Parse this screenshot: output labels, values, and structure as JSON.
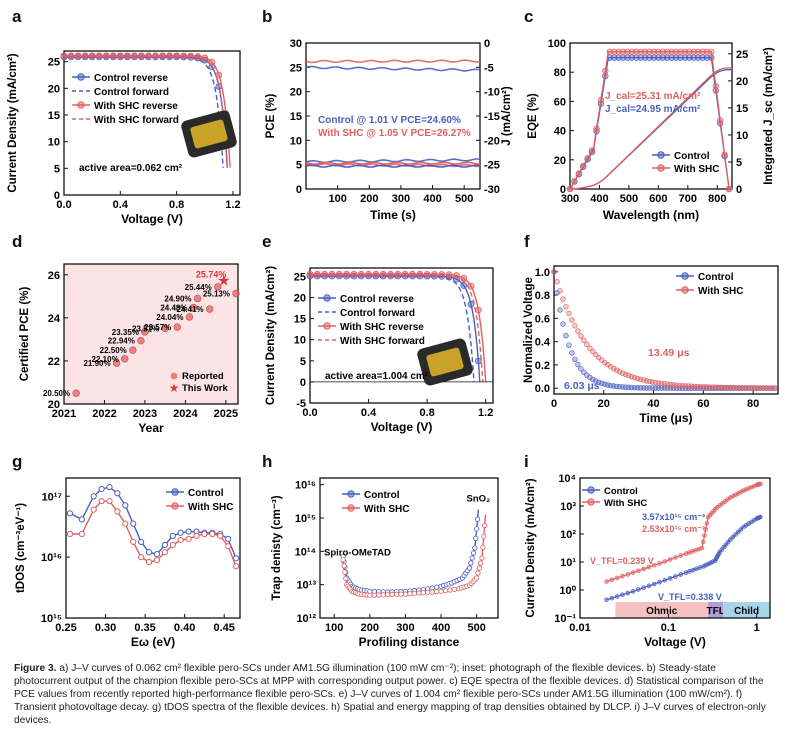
{
  "figure": {
    "caption_label": "Figure 3.",
    "caption_text": "a) J–V curves of 0.062 cm² flexible pero-SCs under AM1.5G illumination (100 mW cm⁻²); inset: photograph of the flexible devices. b) Steady-state photocurrent output of the champion flexible pero-SCs at MPP with corresponding output power. c) EQE spectra of the flexible devices. d) Statistical comparison of the PCE values from recently reported high-performance flexible pero-SCs. e) J–V curves of 1.004 cm² flexible pero-SCs under AM1.5G illumination (100 mW/cm²). f) Transient photovoltage decay. g) tDOS spectra of the flexible devices. h) Spatial and energy mapping of trap densities obtained by DLCP. i) J–V curves of electron-only devices."
  },
  "colors": {
    "control": "#4a5fc1",
    "shc": "#e06060",
    "star": "#d93a3a",
    "ohmic": "#f4c2c2",
    "tfl": "#b39ddb",
    "child": "#a8d4e8"
  },
  "panels": {
    "a": {
      "label": "a",
      "xlabel": "Voltage (V)",
      "ylabel": "Current Density (mA/cm²)",
      "legend": [
        "Control reverse",
        "Control forward",
        "With SHC reverse",
        "With SHC forward"
      ],
      "note": "active area=0.062 cm²"
    },
    "b": {
      "label": "b",
      "xlabel": "Time (s)",
      "ylabel": "PCE (%)",
      "y2label": "J (mA/cm²)",
      "text_control": "Control @ 1.01 V  PCE=24.60%",
      "text_shc": "With SHC @ 1.05 V  PCE=26.27%"
    },
    "c": {
      "label": "c",
      "xlabel": "Wavelength (nm)",
      "ylabel": "EQE (%)",
      "y2label": "Integrated J_sc (mA/cm²)",
      "jcal_shc": "J_cal=25.31 mA/cm²",
      "jcal_control": "J_cal=24.95 mA/cm²",
      "legend": [
        "Control",
        "With SHC"
      ]
    },
    "d": {
      "label": "d",
      "xlabel": "Year",
      "ylabel": "Certified PCE (%)",
      "legend": [
        "Reported",
        "This Work"
      ]
    },
    "e": {
      "label": "e",
      "xlabel": "Voltage (V)",
      "ylabel": "Current Density (mA/cm²)",
      "legend": [
        "Control reverse",
        "Control forward",
        "With SHC reverse",
        "With SHC forward"
      ],
      "note": "active area=1.004 cm²"
    },
    "f": {
      "label": "f",
      "xlabel": "Time (μs)",
      "ylabel": "Normalized Voltage",
      "legend": [
        "Control",
        "With SHC"
      ],
      "tau_control": "6.03 μs",
      "tau_shc": "13.49 μs"
    },
    "g": {
      "label": "g",
      "xlabel": "Eω (eV)",
      "ylabel": "tDOS (cm⁻³eV⁻¹)",
      "legend": [
        "Control",
        "With SHC"
      ]
    },
    "h": {
      "label": "h",
      "xlabel": "Profiling distance",
      "ylabel": "Trap denisty (cm⁻³)",
      "legend": [
        "Control",
        "With SHC"
      ],
      "left_label": "Spiro-OMeTAD",
      "right_label": "SnO₂"
    },
    "i": {
      "label": "i",
      "xlabel": "Voltage (V)",
      "ylabel": "Current Density (mA/cm²)",
      "legend": [
        "Control",
        "With SHC"
      ],
      "n_control": "3.57x10¹⁵ cm⁻³",
      "n_shc": "2.53x10¹⁵ cm⁻³",
      "vtfl_shc": "V_TFL=0.239 V",
      "vtfl_control": "V_TFL=0.338 V",
      "regions": [
        "Ohmic",
        "TFL",
        "Child"
      ]
    }
  },
  "chart_data": [
    {
      "panel": "a",
      "type": "line",
      "xlim": [
        0,
        1.25
      ],
      "ylim": [
        0,
        27
      ],
      "xticks": [
        "0.0",
        "0.4",
        "0.8",
        "1.2"
      ],
      "yticks": [
        "0",
        "5",
        "10",
        "15",
        "20",
        "25"
      ],
      "series": [
        {
          "name": "Control reverse",
          "jsc": 25.9,
          "voc": 1.17
        },
        {
          "name": "Control forward",
          "jsc": 25.8,
          "voc": 1.14
        },
        {
          "name": "With SHC reverse",
          "jsc": 26.1,
          "voc": 1.19
        },
        {
          "name": "With SHC forward",
          "jsc": 26.0,
          "voc": 1.17
        }
      ]
    },
    {
      "panel": "b",
      "type": "line",
      "xlim": [
        0,
        550
      ],
      "ylim": [
        0,
        30
      ],
      "y2lim": [
        -30,
        0
      ],
      "xticks": [
        "100",
        "200",
        "300",
        "400",
        "500"
      ],
      "yticks": [
        "0",
        "5",
        "10",
        "15",
        "20",
        "25",
        "30"
      ],
      "y2ticks": [
        "0",
        "-5",
        "-10",
        "-15",
        "-20",
        "-25",
        "-30"
      ],
      "series": [
        {
          "name": "Control PCE",
          "values": [
            25.0,
            24.4
          ]
        },
        {
          "name": "With SHC PCE",
          "values": [
            26.2,
            26.3
          ]
        },
        {
          "name": "Control J",
          "values": [
            -24.4,
            -24.0
          ]
        },
        {
          "name": "With SHC J",
          "values": [
            -25.0,
            -25.2
          ]
        }
      ]
    },
    {
      "panel": "c",
      "type": "line",
      "xlim": [
        300,
        850
      ],
      "ylim": [
        0,
        100
      ],
      "y2lim": [
        0,
        27
      ],
      "xticks": [
        "300",
        "400",
        "500",
        "600",
        "700",
        "800"
      ],
      "yticks": [
        "0",
        "20",
        "40",
        "60",
        "80",
        "100"
      ],
      "y2ticks": [
        "0",
        "5",
        "10",
        "15",
        "20",
        "25"
      ],
      "series": [
        {
          "name": "Control",
          "eqe_plateau": 92,
          "jsc_int": 24.95
        },
        {
          "name": "With SHC",
          "eqe_plateau": 94,
          "jsc_int": 25.31
        }
      ]
    },
    {
      "panel": "d",
      "type": "scatter",
      "xlim": [
        2021,
        2025.5
      ],
      "ylim": [
        20,
        26.5
      ],
      "xticks": [
        "2021",
        "2022",
        "2023",
        "2024",
        "2025"
      ],
      "yticks": [
        "20",
        "22",
        "24",
        "26"
      ],
      "points": [
        {
          "x": 2021.3,
          "y": 20.5,
          "label": "20.50%"
        },
        {
          "x": 2022.3,
          "y": 21.9,
          "label": "21.90%"
        },
        {
          "x": 2022.5,
          "y": 22.1,
          "label": "22.10%"
        },
        {
          "x": 2022.7,
          "y": 22.5,
          "label": "22.50%"
        },
        {
          "x": 2022.9,
          "y": 22.94,
          "label": "22.94%"
        },
        {
          "x": 2023.0,
          "y": 23.35,
          "label": "23.35%"
        },
        {
          "x": 2023.5,
          "y": 23.51,
          "label": "23.51%"
        },
        {
          "x": 2023.8,
          "y": 23.57,
          "label": "23.57%"
        },
        {
          "x": 2024.1,
          "y": 24.04,
          "label": "24.04%"
        },
        {
          "x": 2024.2,
          "y": 24.48,
          "label": "24.48%"
        },
        {
          "x": 2024.3,
          "y": 24.9,
          "label": "24.90%"
        },
        {
          "x": 2024.6,
          "y": 24.41,
          "label": "24.41%"
        },
        {
          "x": 2024.8,
          "y": 25.44,
          "label": "25.44%"
        },
        {
          "x": 2025.3,
          "y": 25.13,
          "label": "25.13%"
        },
        {
          "x": 2024.95,
          "y": 25.74,
          "label": "25.74%",
          "this_work": true
        }
      ]
    },
    {
      "panel": "e",
      "type": "line",
      "xlim": [
        0,
        1.25
      ],
      "ylim": [
        -5,
        27
      ],
      "xticks": [
        "0.0",
        "0.4",
        "0.8",
        "1.2"
      ],
      "yticks": [
        "-5",
        "0",
        "5",
        "10",
        "15",
        "20",
        "25"
      ],
      "series": [
        {
          "name": "Control reverse",
          "jsc": 25.1,
          "voc": 1.16
        },
        {
          "name": "Control forward",
          "jsc": 25.0,
          "voc": 1.12
        },
        {
          "name": "With SHC reverse",
          "jsc": 25.5,
          "voc": 1.2
        },
        {
          "name": "With SHC forward",
          "jsc": 25.4,
          "voc": 1.18
        }
      ]
    },
    {
      "panel": "f",
      "type": "scatter",
      "xlim": [
        0,
        90
      ],
      "ylim": [
        -0.05,
        1.05
      ],
      "xticks": [
        "0",
        "20",
        "40",
        "60",
        "80"
      ],
      "yticks": [
        "0.0",
        "0.2",
        "0.4",
        "0.6",
        "0.8",
        "1.0"
      ],
      "series": [
        {
          "name": "Control",
          "tau": 6.03
        },
        {
          "name": "With SHC",
          "tau": 13.49
        }
      ]
    },
    {
      "panel": "g",
      "type": "line",
      "xlim": [
        0.25,
        0.47
      ],
      "ylim_log": [
        15,
        17.3
      ],
      "xticks": [
        "0.25",
        "0.30",
        "0.35",
        "0.40",
        "0.45"
      ],
      "yticks": [
        "10¹⁵",
        "10¹⁶",
        "10¹⁷"
      ],
      "series": [
        {
          "name": "Control",
          "x": [
            0.255,
            0.27,
            0.285,
            0.295,
            0.305,
            0.315,
            0.325,
            0.335,
            0.345,
            0.355,
            0.365,
            0.375,
            0.385,
            0.395,
            0.405,
            0.415,
            0.425,
            0.435,
            0.445,
            0.455,
            0.465
          ],
          "logy": [
            16.72,
            16.62,
            17.0,
            17.12,
            17.15,
            17.05,
            16.85,
            16.55,
            16.25,
            16.08,
            16.05,
            16.2,
            16.35,
            16.4,
            16.42,
            16.42,
            16.4,
            16.4,
            16.38,
            16.3,
            15.98
          ]
        },
        {
          "name": "With SHC",
          "x": [
            0.255,
            0.27,
            0.285,
            0.295,
            0.305,
            0.315,
            0.325,
            0.335,
            0.345,
            0.355,
            0.365,
            0.375,
            0.385,
            0.395,
            0.405,
            0.415,
            0.425,
            0.435,
            0.445,
            0.455,
            0.465
          ],
          "logy": [
            16.38,
            16.38,
            16.78,
            16.92,
            16.92,
            16.75,
            16.55,
            16.25,
            16.0,
            15.92,
            15.95,
            16.08,
            16.2,
            16.28,
            16.3,
            16.35,
            16.38,
            16.38,
            16.35,
            16.18,
            15.85
          ]
        }
      ]
    },
    {
      "panel": "h",
      "type": "line",
      "xlim": [
        0,
        600
      ],
      "ylim_log": [
        12,
        16.2
      ],
      "xticks": [
        "100",
        "200",
        "300",
        "400",
        "500"
      ],
      "yticks": [
        "10¹²",
        "10¹³",
        "10¹⁴",
        "10¹⁵",
        "10¹⁶"
      ],
      "series": [
        {
          "name": "Control",
          "x": [
            125,
            135,
            150,
            170,
            200,
            250,
            300,
            350,
            400,
            430,
            460,
            480,
            495,
            505
          ],
          "logy": [
            13.85,
            13.2,
            12.95,
            12.85,
            12.8,
            12.78,
            12.8,
            12.85,
            12.95,
            13.05,
            13.2,
            13.5,
            14.1,
            15.25
          ]
        },
        {
          "name": "With SHC",
          "x": [
            125,
            135,
            150,
            170,
            200,
            250,
            300,
            350,
            400,
            450,
            480,
            500,
            515,
            525
          ],
          "logy": [
            13.75,
            13.0,
            12.8,
            12.72,
            12.68,
            12.7,
            12.72,
            12.76,
            12.8,
            12.88,
            12.98,
            13.2,
            13.8,
            15.1
          ]
        }
      ]
    },
    {
      "panel": "i",
      "type": "scatter",
      "xlim_log": [
        -2,
        0.15
      ],
      "ylim_log": [
        -1,
        4
      ],
      "xticks": [
        "0.01",
        "0.1",
        "1"
      ],
      "yticks": [
        "10⁻¹",
        "10⁰",
        "10¹",
        "10²",
        "10³",
        "10⁴"
      ],
      "series": [
        {
          "name": "Control",
          "logx": [
            -1.7,
            -1.4,
            -1.1,
            -0.8,
            -0.6,
            -0.47,
            -0.42,
            -0.3,
            -0.15,
            0.0,
            0.05
          ],
          "logy": [
            -0.35,
            -0.05,
            0.28,
            0.62,
            0.85,
            1.05,
            1.35,
            1.8,
            2.25,
            2.55,
            2.62
          ]
        },
        {
          "name": "With SHC",
          "logx": [
            -1.7,
            -1.4,
            -1.1,
            -0.8,
            -0.62,
            -0.55,
            -0.45,
            -0.3,
            -0.15,
            0.0,
            0.05
          ],
          "logy": [
            0.3,
            0.62,
            0.95,
            1.3,
            1.5,
            2.6,
            2.95,
            3.3,
            3.55,
            3.75,
            3.8
          ]
        }
      ]
    }
  ]
}
